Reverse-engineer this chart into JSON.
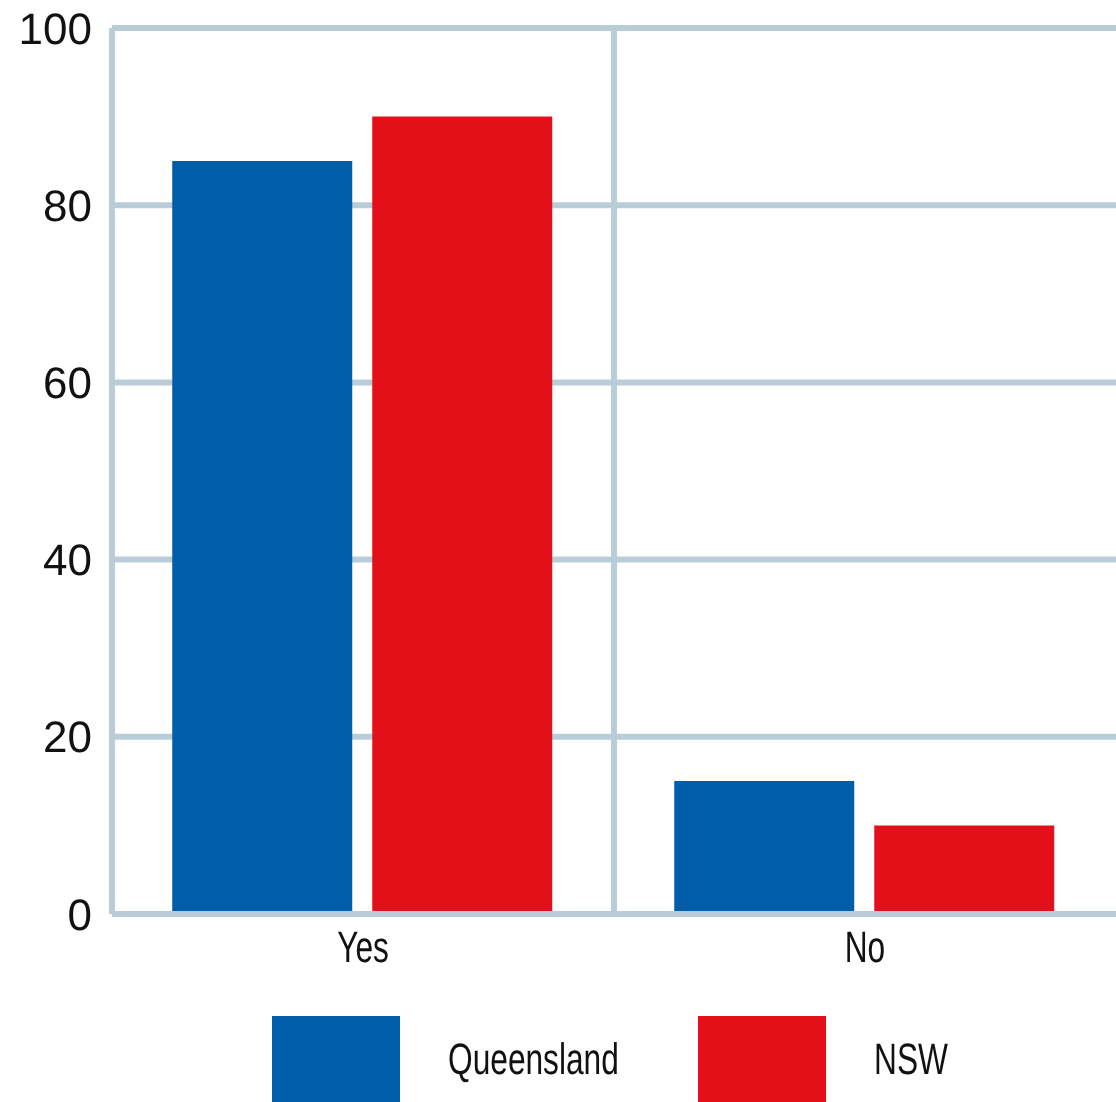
{
  "chart_data": {
    "type": "bar",
    "categories": [
      "Yes",
      "No"
    ],
    "series": [
      {
        "name": "Queensland",
        "color": "#005da9",
        "values": [
          85,
          15
        ]
      },
      {
        "name": "NSW",
        "color": "#e30f19",
        "values": [
          90,
          10
        ]
      }
    ],
    "ylim": [
      0,
      100
    ],
    "yticks": [
      0,
      20,
      40,
      60,
      80,
      100
    ],
    "grid": true,
    "legend": "bottom"
  }
}
